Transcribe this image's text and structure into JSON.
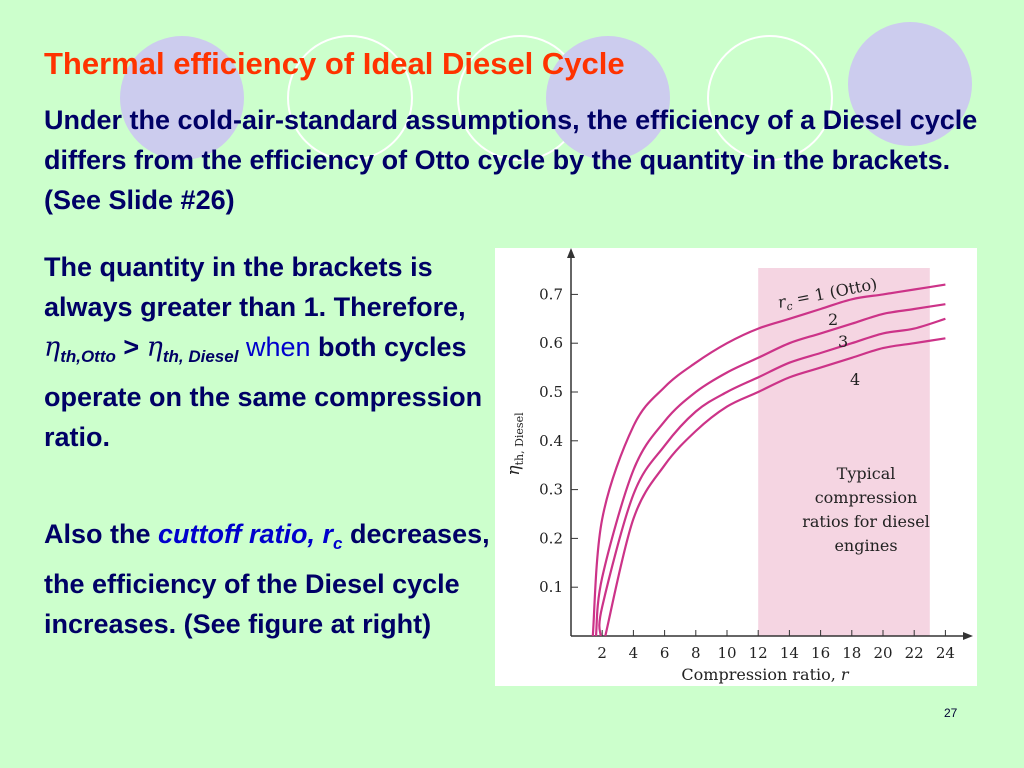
{
  "slide": {
    "title": "Thermal efficiency of Ideal Diesel Cycle",
    "intro": "Under the cold-air-standard assumptions, the efficiency of a Diesel cycle differs from the efficiency of Otto cycle by the quantity in the brackets. (See Slide #26)",
    "para1": {
      "part1": "The quantity in the brackets is always greater than 1. Therefore, ",
      "eta1": "η",
      "sub1": "th,Otto",
      "gt": " > ",
      "eta2": "η",
      "sub2": "th, Diesel",
      "when": " when",
      "part2": " both cycles operate on the same compression ratio."
    },
    "para2": {
      "part1": "Also the ",
      "cutoff_label": "cuttoff ratio, r",
      "cutoff_sub": "c",
      "part2": " decreases, the efficiency of the Diesel cycle increases. (See figure at right)"
    },
    "slide_number": "27"
  },
  "chart_data": {
    "type": "line",
    "xlabel": "Compression ratio, r",
    "ylabel": "η",
    "ylabel_sub": "th, Diesel",
    "xlim": [
      0,
      25
    ],
    "ylim": [
      0,
      0.75
    ],
    "xticks": [
      2,
      4,
      6,
      8,
      10,
      12,
      14,
      16,
      18,
      20,
      22,
      24
    ],
    "yticks": [
      0.1,
      0.2,
      0.3,
      0.4,
      0.5,
      0.6,
      0.7
    ],
    "ytick_labels": [
      "0.1",
      "0.2",
      "0.3",
      "0.4",
      "0.5",
      "0.6",
      "0.7"
    ],
    "grid": false,
    "line_color": "#cc3388",
    "shade_color": "#f5d5e2",
    "shaded_region": {
      "x": [
        12,
        23
      ],
      "label": [
        "Typical",
        "compression",
        "ratios for diesel",
        "engines"
      ]
    },
    "series": [
      {
        "name": "r_c = 1 (Otto)",
        "label_main": "r",
        "label_sub": "c",
        "label_rest": " = 1 (Otto)",
        "x": [
          1.4,
          2,
          4,
          6,
          8,
          10,
          12,
          14,
          16,
          18,
          20,
          22,
          24
        ],
        "y": [
          0.0,
          0.24,
          0.43,
          0.51,
          0.56,
          0.6,
          0.63,
          0.65,
          0.67,
          0.69,
          0.7,
          0.71,
          0.72
        ]
      },
      {
        "name": "2",
        "label_main": "2",
        "x": [
          1.6,
          2,
          4,
          6,
          8,
          10,
          12,
          14,
          16,
          18,
          20,
          22,
          24
        ],
        "y": [
          0.0,
          0.12,
          0.34,
          0.44,
          0.5,
          0.54,
          0.57,
          0.6,
          0.62,
          0.64,
          0.66,
          0.67,
          0.68
        ]
      },
      {
        "name": "3",
        "label_main": "3",
        "x": [
          1.9,
          2,
          4,
          6,
          8,
          10,
          12,
          14,
          16,
          18,
          20,
          22,
          24
        ],
        "y": [
          0.0,
          0.06,
          0.29,
          0.39,
          0.46,
          0.5,
          0.53,
          0.56,
          0.58,
          0.6,
          0.62,
          0.63,
          0.65
        ]
      },
      {
        "name": "4",
        "label_main": "4",
        "x": [
          2.2,
          4,
          6,
          8,
          10,
          12,
          14,
          16,
          18,
          20,
          22,
          24
        ],
        "y": [
          0.0,
          0.24,
          0.35,
          0.42,
          0.47,
          0.5,
          0.53,
          0.55,
          0.57,
          0.59,
          0.6,
          0.61
        ]
      }
    ]
  }
}
